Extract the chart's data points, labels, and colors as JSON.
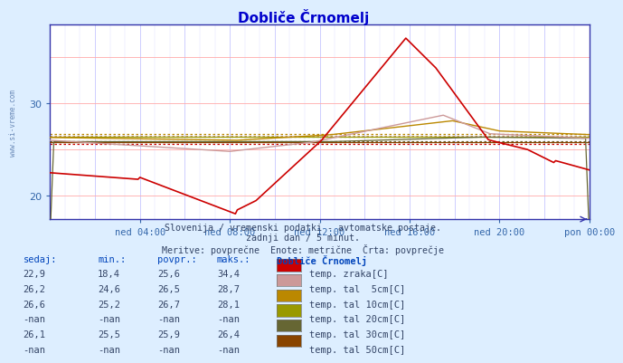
{
  "title": "Dobliče Črnomelj",
  "bg_color": "#ddeeff",
  "plot_bg": "#ffffff",
  "title_color": "#0000cc",
  "tick_label_color": "#3366aa",
  "watermark": "www.si-vreme.com",
  "subtitle1": "Slovenija / vremenski podatki - avtomatske postaje.",
  "subtitle2": "zadnji dan / 5 minut.",
  "subtitle3": "Meritve: povprečne  Enote: metrične  Črta: povprečje",
  "x_ticks": [
    "ned 04:00",
    "ned 08:00",
    "ned 12:00",
    "ned 16:00",
    "ned 20:00",
    "pon 00:00"
  ],
  "x_tick_positions": [
    48,
    96,
    144,
    192,
    240,
    288
  ],
  "ylim_low": 17.5,
  "ylim_high": 38.5,
  "xlim_low": 0,
  "xlim_high": 288,
  "avg_zraka": 25.6,
  "avg_5cm": 26.5,
  "avg_10cm": 26.7,
  "avg_30cm": 25.9,
  "avg_20cm": 26.35,
  "avg_50cm": 25.75,
  "color_zraka": "#cc0000",
  "color_5cm": "#cc9999",
  "color_10cm": "#bb8800",
  "color_20cm": "#999900",
  "color_30cm": "#666633",
  "color_50cm": "#884400",
  "legend_data": [
    {
      "sedaj": "22,9",
      "min": "18,4",
      "povpr": "25,6",
      "maks": "34,4",
      "color": "#cc0000",
      "label": "temp. zraka[C]"
    },
    {
      "sedaj": "26,2",
      "min": "24,6",
      "povpr": "26,5",
      "maks": "28,7",
      "color": "#cc9999",
      "label": "temp. tal  5cm[C]"
    },
    {
      "sedaj": "26,6",
      "min": "25,2",
      "povpr": "26,7",
      "maks": "28,1",
      "color": "#bb8800",
      "label": "temp. tal 10cm[C]"
    },
    {
      "sedaj": "-nan",
      "min": "-nan",
      "povpr": "-nan",
      "maks": "-nan",
      "color": "#999900",
      "label": "temp. tal 20cm[C]"
    },
    {
      "sedaj": "26,1",
      "min": "25,5",
      "povpr": "25,9",
      "maks": "26,4",
      "color": "#666633",
      "label": "temp. tal 30cm[C]"
    },
    {
      "sedaj": "-nan",
      "min": "-nan",
      "povpr": "-nan",
      "maks": "-nan",
      "color": "#884400",
      "label": "temp. tal 50cm[C]"
    }
  ]
}
